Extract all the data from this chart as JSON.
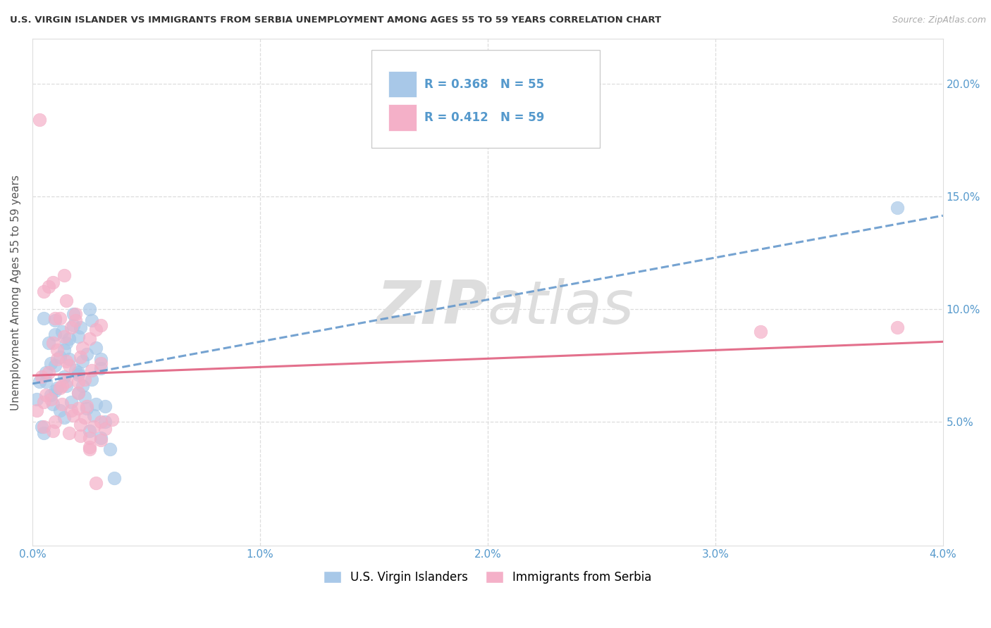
{
  "title": "U.S. VIRGIN ISLANDER VS IMMIGRANTS FROM SERBIA UNEMPLOYMENT AMONG AGES 55 TO 59 YEARS CORRELATION CHART",
  "source": "Source: ZipAtlas.com",
  "ylabel": "Unemployment Among Ages 55 to 59 years",
  "xlim": [
    0.0,
    0.04
  ],
  "ylim": [
    -0.005,
    0.22
  ],
  "xticks": [
    0.0,
    0.01,
    0.02,
    0.03,
    0.04
  ],
  "xtick_labels": [
    "0.0%",
    "1.0%",
    "2.0%",
    "3.0%",
    "4.0%"
  ],
  "yticks": [
    0.0,
    0.05,
    0.1,
    0.15,
    0.2
  ],
  "ytick_labels_right": [
    "",
    "5.0%",
    "10.0%",
    "15.0%",
    "20.0%"
  ],
  "legend1_r": "0.368",
  "legend1_n": "55",
  "legend2_r": "0.412",
  "legend2_n": "59",
  "legend1_label": "U.S. Virgin Islanders",
  "legend2_label": "Immigrants from Serbia",
  "blue_color": "#a8c8e8",
  "pink_color": "#f4b0c8",
  "blue_line_color": "#6699cc",
  "pink_line_color": "#e06080",
  "grid_color": "#dddddd",
  "border_color": "#dddddd",
  "tick_label_color": "#5599cc",
  "title_color": "#333333",
  "source_color": "#aaaaaa",
  "ylabel_color": "#555555",
  "watermark_color": "#dddddd",
  "blue_x": [
    0.0003,
    0.0005,
    0.0006,
    0.0007,
    0.0008,
    0.0009,
    0.001,
    0.001,
    0.0011,
    0.0012,
    0.0013,
    0.0014,
    0.0014,
    0.0015,
    0.0016,
    0.0017,
    0.0018,
    0.0019,
    0.002,
    0.002,
    0.0021,
    0.0022,
    0.0023,
    0.0024,
    0.0025,
    0.0026,
    0.0027,
    0.0028,
    0.003,
    0.0032,
    0.0002,
    0.0004,
    0.0006,
    0.0008,
    0.001,
    0.0012,
    0.0014,
    0.0016,
    0.0018,
    0.002,
    0.0022,
    0.0024,
    0.0026,
    0.0028,
    0.003,
    0.0032,
    0.0034,
    0.0036,
    0.0005,
    0.001,
    0.0015,
    0.002,
    0.0025,
    0.003,
    0.038
  ],
  "blue_y": [
    0.068,
    0.045,
    0.072,
    0.085,
    0.062,
    0.058,
    0.075,
    0.095,
    0.065,
    0.055,
    0.09,
    0.07,
    0.082,
    0.066,
    0.078,
    0.059,
    0.098,
    0.073,
    0.088,
    0.063,
    0.092,
    0.077,
    0.061,
    0.056,
    0.1,
    0.069,
    0.053,
    0.083,
    0.074,
    0.057,
    0.06,
    0.048,
    0.068,
    0.076,
    0.064,
    0.079,
    0.052,
    0.087,
    0.093,
    0.071,
    0.066,
    0.08,
    0.095,
    0.058,
    0.043,
    0.05,
    0.038,
    0.025,
    0.096,
    0.089,
    0.085,
    0.072,
    0.046,
    0.078,
    0.145
  ],
  "pink_x": [
    0.0002,
    0.0004,
    0.0005,
    0.0006,
    0.0007,
    0.0008,
    0.0009,
    0.001,
    0.0011,
    0.0012,
    0.0013,
    0.0014,
    0.0015,
    0.0016,
    0.0017,
    0.0018,
    0.0019,
    0.002,
    0.0021,
    0.0022,
    0.0023,
    0.0024,
    0.0025,
    0.0026,
    0.0027,
    0.0028,
    0.003,
    0.0003,
    0.0005,
    0.0007,
    0.0009,
    0.0011,
    0.0013,
    0.0015,
    0.0017,
    0.0019,
    0.0021,
    0.0023,
    0.0025,
    0.0028,
    0.003,
    0.0032,
    0.0005,
    0.001,
    0.0015,
    0.002,
    0.0025,
    0.003,
    0.0035,
    0.0009,
    0.0014,
    0.002,
    0.0016,
    0.0021,
    0.0012,
    0.003,
    0.0025,
    0.038,
    0.032
  ],
  "pink_y": [
    0.055,
    0.07,
    0.048,
    0.062,
    0.072,
    0.06,
    0.085,
    0.05,
    0.078,
    0.065,
    0.058,
    0.088,
    0.068,
    0.075,
    0.092,
    0.053,
    0.095,
    0.063,
    0.079,
    0.083,
    0.069,
    0.057,
    0.087,
    0.073,
    0.048,
    0.091,
    0.05,
    0.184,
    0.108,
    0.11,
    0.046,
    0.082,
    0.066,
    0.077,
    0.055,
    0.098,
    0.044,
    0.052,
    0.038,
    0.023,
    0.042,
    0.047,
    0.059,
    0.096,
    0.104,
    0.068,
    0.043,
    0.076,
    0.051,
    0.112,
    0.115,
    0.056,
    0.045,
    0.049,
    0.096,
    0.093,
    0.039,
    0.092,
    0.09
  ]
}
